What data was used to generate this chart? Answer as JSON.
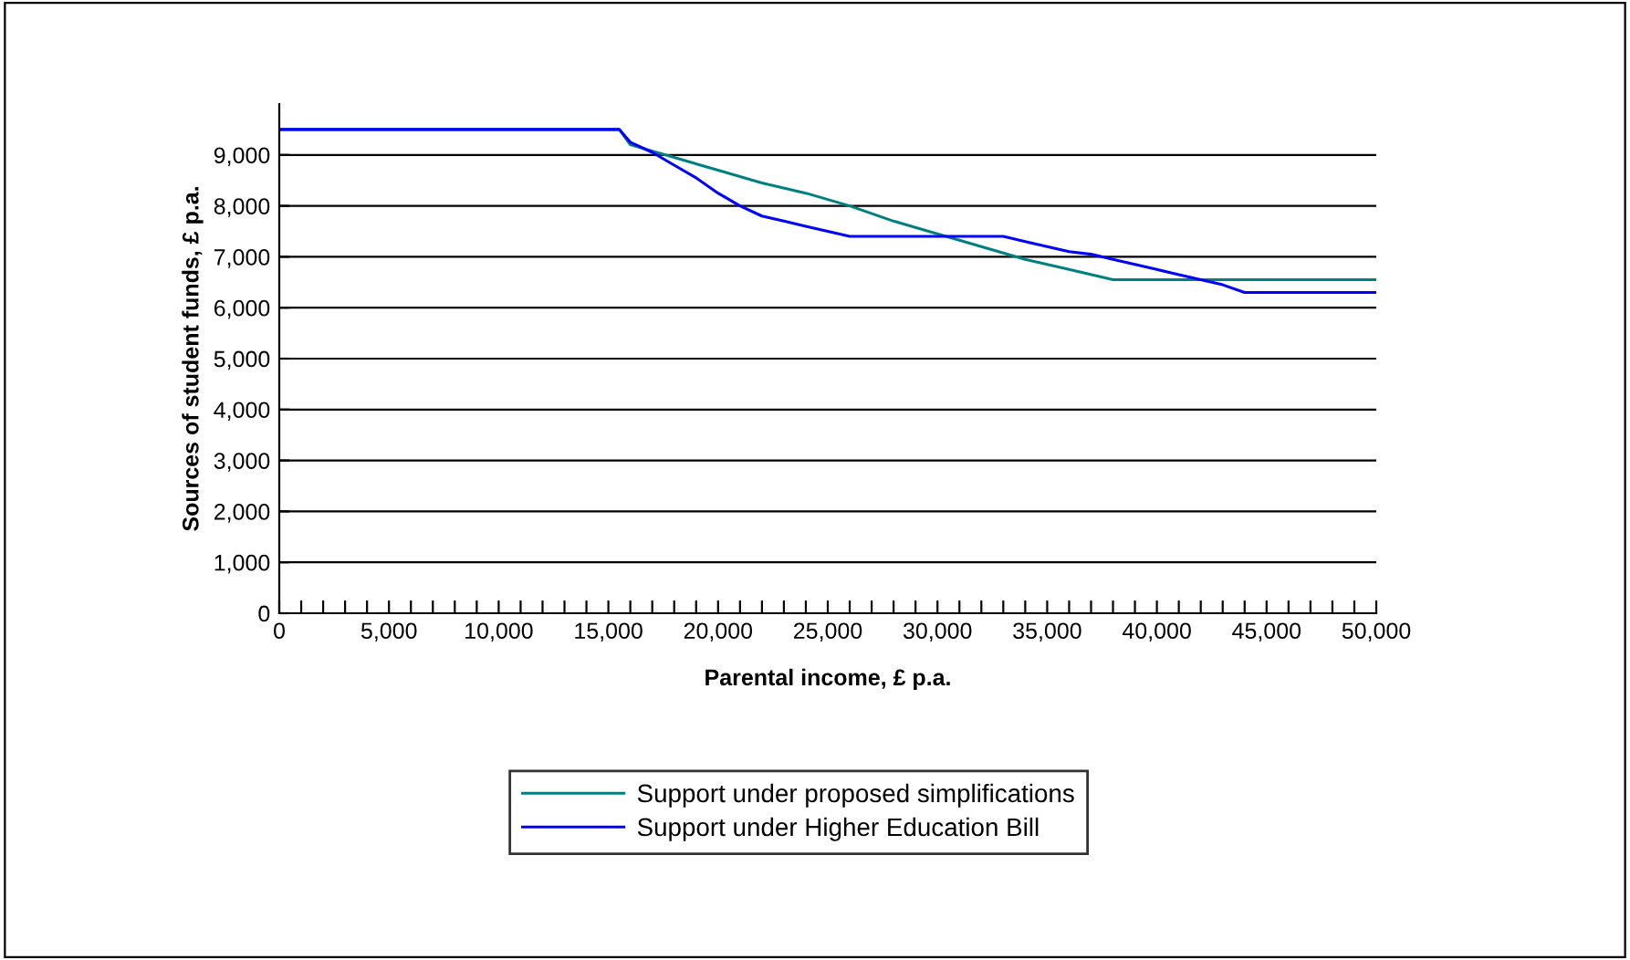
{
  "chart_data": {
    "type": "line",
    "xlabel": "Parental income, £ p.a.",
    "ylabel": "Sources of student funds, £ p.a.",
    "xlim": [
      0,
      50000
    ],
    "ylim": [
      0,
      10000
    ],
    "xticks": [
      0,
      {
        "value": 1000,
        "label": null
      },
      {
        "value": 2000,
        "label": null
      },
      {
        "value": 3000,
        "label": null
      },
      {
        "value": 4000,
        "label": null
      },
      {
        "value": 5000,
        "label": "5,000"
      },
      {
        "value": 6000,
        "label": null
      },
      {
        "value": 7000,
        "label": null
      },
      {
        "value": 8000,
        "label": null
      },
      {
        "value": 9000,
        "label": null
      },
      {
        "value": 10000,
        "label": "10,000"
      },
      {
        "value": 11000,
        "label": null
      },
      {
        "value": 12000,
        "label": null
      },
      {
        "value": 13000,
        "label": null
      },
      {
        "value": 14000,
        "label": null
      },
      {
        "value": 15000,
        "label": "15,000"
      },
      {
        "value": 16000,
        "label": null
      },
      {
        "value": 17000,
        "label": null
      },
      {
        "value": 18000,
        "label": null
      },
      {
        "value": 19000,
        "label": null
      },
      {
        "value": 20000,
        "label": "20,000"
      },
      {
        "value": 21000,
        "label": null
      },
      {
        "value": 22000,
        "label": null
      },
      {
        "value": 23000,
        "label": null
      },
      {
        "value": 24000,
        "label": null
      },
      {
        "value": 25000,
        "label": "25,000"
      },
      {
        "value": 26000,
        "label": null
      },
      {
        "value": 27000,
        "label": null
      },
      {
        "value": 28000,
        "label": null
      },
      {
        "value": 29000,
        "label": null
      },
      {
        "value": 30000,
        "label": "30,000"
      },
      {
        "value": 31000,
        "label": null
      },
      {
        "value": 32000,
        "label": null
      },
      {
        "value": 33000,
        "label": null
      },
      {
        "value": 34000,
        "label": null
      },
      {
        "value": 35000,
        "label": "35,000"
      },
      {
        "value": 36000,
        "label": null
      },
      {
        "value": 37000,
        "label": null
      },
      {
        "value": 38000,
        "label": null
      },
      {
        "value": 39000,
        "label": null
      },
      {
        "value": 40000,
        "label": "40,000"
      },
      {
        "value": 41000,
        "label": null
      },
      {
        "value": 42000,
        "label": null
      },
      {
        "value": 43000,
        "label": null
      },
      {
        "value": 44000,
        "label": null
      },
      {
        "value": 45000,
        "label": "45,000"
      },
      {
        "value": 46000,
        "label": null
      },
      {
        "value": 47000,
        "label": null
      },
      {
        "value": 48000,
        "label": null
      },
      {
        "value": 49000,
        "label": null
      },
      {
        "value": 50000,
        "label": "50,000"
      }
    ],
    "yticks": [
      0,
      {
        "value": 1000,
        "label": "1,000"
      },
      {
        "value": 2000,
        "label": "2,000"
      },
      {
        "value": 3000,
        "label": "3,000"
      },
      {
        "value": 4000,
        "label": "4,000"
      },
      {
        "value": 5000,
        "label": "5,000"
      },
      {
        "value": 6000,
        "label": "6,000"
      },
      {
        "value": 7000,
        "label": "7,000"
      },
      {
        "value": 8000,
        "label": "8,000"
      },
      {
        "value": 9000,
        "label": "9,000"
      }
    ],
    "grid": "y",
    "legend": "bottom",
    "marker": "none",
    "line_style": "solid",
    "series": [
      {
        "name": "Support under proposed simplifications",
        "color": "#008080",
        "x": [
          0,
          15500,
          16000,
          18000,
          20000,
          22000,
          24000,
          26000,
          28000,
          30000,
          32000,
          34000,
          36000,
          38000,
          50000
        ],
        "values": [
          9500,
          9500,
          9200,
          8950,
          8700,
          8450,
          8250,
          8000,
          7700,
          7450,
          7200,
          6950,
          6750,
          6550,
          6550
        ]
      },
      {
        "name": "Support under Higher Education Bill",
        "color": "#0000ff",
        "x": [
          0,
          15500,
          16000,
          17000,
          18000,
          19000,
          20000,
          21000,
          22000,
          23000,
          24000,
          25000,
          26000,
          33000,
          34000,
          35000,
          36000,
          37000,
          38000,
          39000,
          40000,
          41000,
          42000,
          43000,
          44000,
          50000
        ],
        "values": [
          9500,
          9500,
          9250,
          9050,
          8800,
          8550,
          8250,
          8000,
          7800,
          7700,
          7600,
          7500,
          7400,
          7400,
          7300,
          7200,
          7100,
          7050,
          6950,
          6850,
          6750,
          6650,
          6550,
          6450,
          6300,
          6300
        ]
      }
    ]
  }
}
